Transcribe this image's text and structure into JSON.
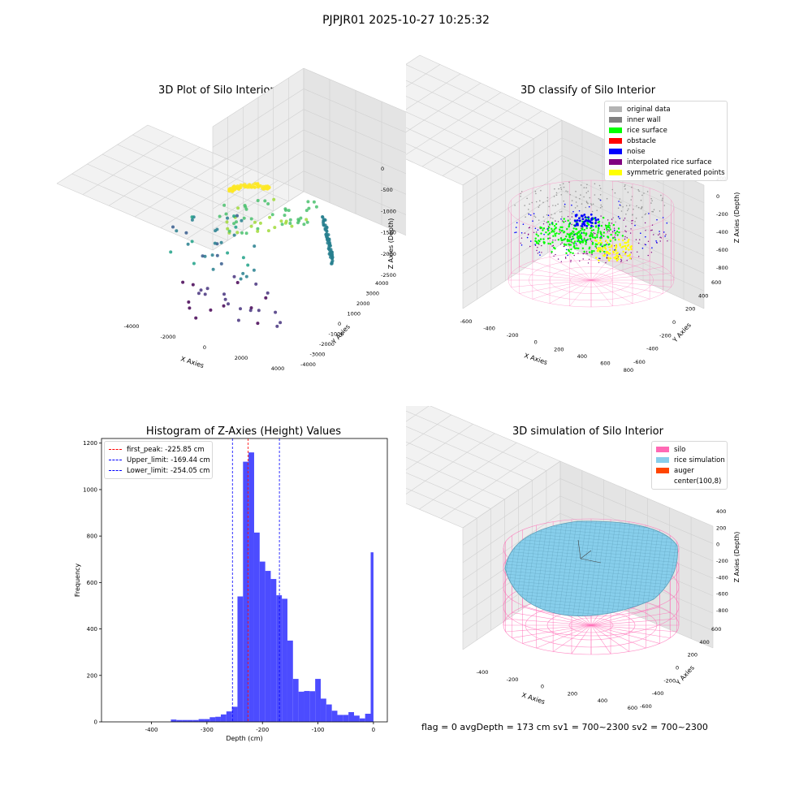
{
  "suptitle": "PJPJR01 2025-10-27 10:25:32",
  "footer": "flag = 0     avgDepth = 173 cm  sv1 = 700~2300  sv2 = 700~2300",
  "chart_data": [
    {
      "type": "scatter",
      "title": "3D Plot of Silo Interior(row data)",
      "xlabel": "X Axies",
      "ylabel": "Y Axies",
      "zlabel": "Z Axies (Depth)",
      "x_ticks": [
        "-4000",
        "-2000",
        "0",
        "2000",
        "4000"
      ],
      "y_ticks": [
        "-4000",
        "-3000",
        "-2000",
        "-1000",
        "0",
        "1000",
        "2000",
        "3000",
        "4000"
      ],
      "z_ticks": [
        "0",
        "-500",
        "-1000",
        "-1500",
        "-2000",
        "-2500"
      ],
      "colormap": "viridis",
      "grid": true
    },
    {
      "type": "scatter",
      "title": "3D classify of Silo Interior",
      "xlabel": "X Axies",
      "ylabel": "Y Axies",
      "zlabel": "Z Axies (Depth)",
      "x_ticks": [
        "-600",
        "-400",
        "-200",
        "0",
        "200",
        "400",
        "600",
        "800"
      ],
      "y_ticks": [
        "-600",
        "-400",
        "-200",
        "0",
        "200",
        "400",
        "600"
      ],
      "z_ticks": [
        "200",
        "0",
        "-200",
        "-400",
        "-600",
        "-800"
      ],
      "legend_position": "top-right",
      "legend": [
        {
          "label": "original data",
          "color": "#b3b3b3"
        },
        {
          "label": "inner wall",
          "color": "#808080"
        },
        {
          "label": "rice surface",
          "color": "#00ff00"
        },
        {
          "label": "obstacle",
          "color": "#ff0000"
        },
        {
          "label": "noise",
          "color": "#0000ff"
        },
        {
          "label": "interpolated rice surface",
          "color": "#800080"
        },
        {
          "label": "symmetric generated points",
          "color": "#ffff00"
        }
      ],
      "grid": true
    },
    {
      "type": "bar",
      "title": "Histogram of Z-Axies (Height) Values",
      "xlabel": "Depth (cm)",
      "ylabel": "Frequency",
      "xlim": [
        -490,
        25
      ],
      "ylim": [
        0,
        1220
      ],
      "x_ticks": [
        -400,
        -300,
        -200,
        -100,
        0
      ],
      "y_ticks": [
        0,
        200,
        400,
        600,
        800,
        1000,
        1200
      ],
      "bar_color": "#4c4cff",
      "bins": [
        [
          -365,
          -355,
          10
        ],
        [
          -355,
          -345,
          8
        ],
        [
          -345,
          -335,
          8
        ],
        [
          -335,
          -325,
          8
        ],
        [
          -325,
          -315,
          8
        ],
        [
          -315,
          -305,
          12
        ],
        [
          -305,
          -295,
          12
        ],
        [
          -295,
          -285,
          20
        ],
        [
          -285,
          -275,
          22
        ],
        [
          -275,
          -265,
          32
        ],
        [
          -265,
          -255,
          45
        ],
        [
          -255,
          -245,
          65
        ],
        [
          -245,
          -235,
          540
        ],
        [
          -235,
          -225,
          1120
        ],
        [
          -225,
          -215,
          1160
        ],
        [
          -215,
          -205,
          815
        ],
        [
          -205,
          -195,
          690
        ],
        [
          -195,
          -185,
          650
        ],
        [
          -185,
          -175,
          615
        ],
        [
          -175,
          -165,
          545
        ],
        [
          -165,
          -155,
          530
        ],
        [
          -155,
          -145,
          350
        ],
        [
          -145,
          -135,
          185
        ],
        [
          -135,
          -125,
          130
        ],
        [
          -125,
          -115,
          133
        ],
        [
          -115,
          -105,
          132
        ],
        [
          -105,
          -95,
          185
        ],
        [
          -95,
          -85,
          100
        ],
        [
          -85,
          -75,
          75
        ],
        [
          -75,
          -65,
          48
        ],
        [
          -65,
          -55,
          30
        ],
        [
          -55,
          -45,
          30
        ],
        [
          -45,
          -35,
          42
        ],
        [
          -35,
          -25,
          27
        ],
        [
          -25,
          -15,
          15
        ],
        [
          -15,
          -5,
          35
        ],
        [
          -5,
          0,
          730
        ]
      ],
      "vlines": [
        {
          "label": "first_peak: -225.85 cm",
          "x": -225.85,
          "color": "#ff0000"
        },
        {
          "label": "Upper_limit: -169.44 cm",
          "x": -169.44,
          "color": "#0000ff"
        },
        {
          "label": "Lower_limit: -254.05 cm",
          "x": -254.05,
          "color": "#0000ff"
        }
      ],
      "legend_position": "top-left"
    },
    {
      "type": "surface",
      "title": "3D simulation of Silo Interior",
      "xlabel": "X Axies",
      "ylabel": "Y Axies",
      "zlabel": "Z Axies (Depth)",
      "x_ticks": [
        "-400",
        "-200",
        "0",
        "200",
        "400",
        "600"
      ],
      "y_ticks": [
        "-600",
        "-400",
        "-200",
        "0",
        "200",
        "400",
        "600"
      ],
      "z_ticks": [
        "400",
        "200",
        "0",
        "-200",
        "-400",
        "-600",
        "-800"
      ],
      "legend_position": "top-right",
      "legend": [
        {
          "label": "silo",
          "color": "#ff69b4"
        },
        {
          "label": "rice simulation",
          "color": "#87ceeb"
        },
        {
          "label": "auger",
          "color": "#ff4500"
        },
        {
          "label": "center(100,8)",
          "color": "#ffffff"
        }
      ],
      "grid": true
    }
  ]
}
